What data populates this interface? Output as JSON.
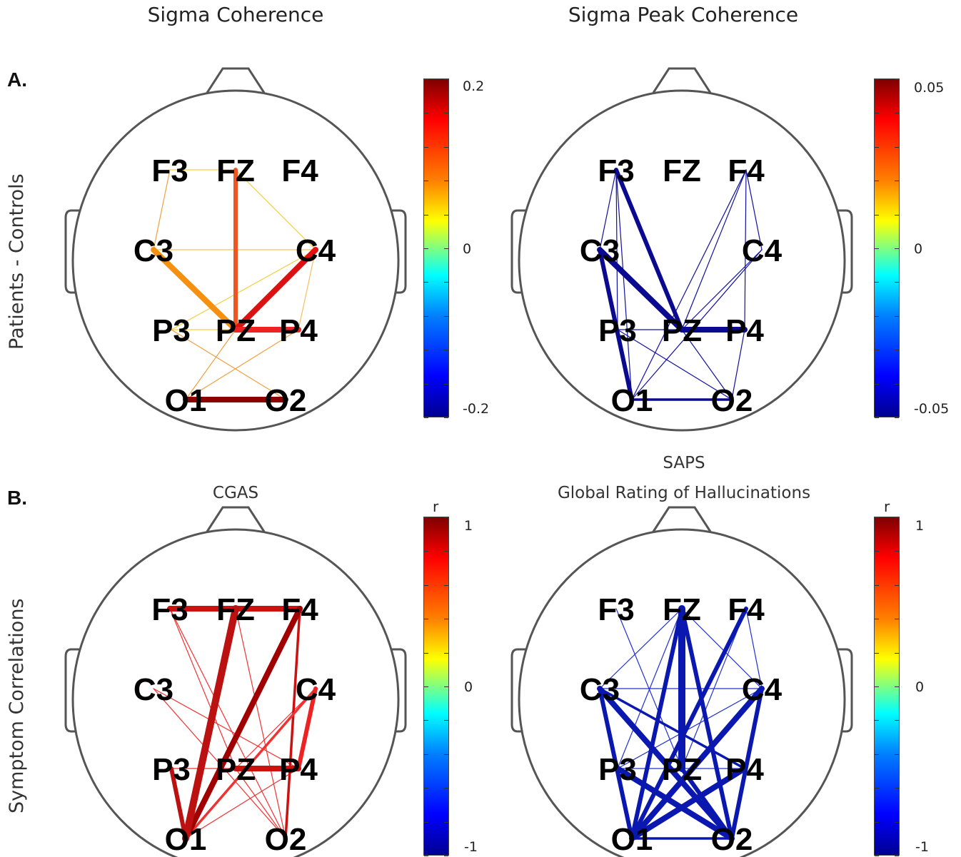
{
  "titles": {
    "left": "Sigma Coherence",
    "right": "Sigma Peak Coherence",
    "b_left": "CGAS",
    "b_right_line1": "SAPS",
    "b_right_line2": "Global Rating of Hallucinations"
  },
  "panels": {
    "a": "A.",
    "b": "B."
  },
  "row_labels": {
    "a": "Patients - Controls",
    "b": "Symptom Correlations"
  },
  "colorbars": {
    "a_left": {
      "top": "0.2",
      "mid": "0",
      "bottom": "-0.2",
      "unit": ""
    },
    "a_right": {
      "top": "0.05",
      "mid": "0",
      "bottom": "-0.05",
      "unit": ""
    },
    "b_left": {
      "top": "1",
      "mid": "0",
      "bottom": "-1",
      "unit": "r"
    },
    "b_right": {
      "top": "1",
      "mid": "0",
      "bottom": "-1",
      "unit": "r"
    }
  },
  "electrodes": [
    "F3",
    "FZ",
    "F4",
    "C3",
    "C4",
    "P3",
    "PZ",
    "P4",
    "O1",
    "O2"
  ],
  "chart_data": {
    "type": "network",
    "heads": [
      {
        "id": "a_left",
        "edges": [
          [
            "FZ",
            "PZ",
            "#ee5522",
            "thick"
          ],
          [
            "C3",
            "PZ",
            "#f59010",
            "heavy"
          ],
          [
            "C4",
            "PZ",
            "#dd1111",
            "heavy"
          ],
          [
            "PZ",
            "P4",
            "#ee2222",
            "heavy"
          ],
          [
            "O1",
            "O2",
            "#8b0000",
            "heavy"
          ],
          [
            "F3",
            "C3",
            "#f0a040",
            "thin"
          ],
          [
            "FZ",
            "C4",
            "#f5d040",
            "thin"
          ],
          [
            "FZ",
            "F3",
            "#f5d040",
            "thin"
          ],
          [
            "C3",
            "C4",
            "#f5c060",
            "thin"
          ],
          [
            "P3",
            "C4",
            "#f5d040",
            "thin"
          ],
          [
            "P3",
            "PZ",
            "#f5d040",
            "thin"
          ],
          [
            "P3",
            "O2",
            "#f0a040",
            "thin"
          ],
          [
            "P4",
            "O1",
            "#f0a040",
            "thin"
          ],
          [
            "PZ",
            "O1",
            "#f0a040",
            "thin"
          ],
          [
            "C4",
            "P4",
            "#f5c060",
            "thin"
          ]
        ]
      },
      {
        "id": "a_right",
        "edges": [
          [
            "C3",
            "PZ",
            "#0a0a90",
            "heavy"
          ],
          [
            "PZ",
            "P4",
            "#0a0a90",
            "heavy"
          ],
          [
            "F3",
            "PZ",
            "#0a0a90",
            "thick"
          ],
          [
            "C3",
            "O1",
            "#0a0a90",
            "thick"
          ],
          [
            "O1",
            "O2",
            "#0a0a90",
            "medium"
          ],
          [
            "F3",
            "C3",
            "#1010a0",
            "thin"
          ],
          [
            "F3",
            "P3",
            "#1010a0",
            "thin"
          ],
          [
            "F3",
            "O1",
            "#1010a0",
            "thin"
          ],
          [
            "F4",
            "PZ",
            "#1010a0",
            "thin"
          ],
          [
            "F4",
            "P4",
            "#1010a0",
            "thin"
          ],
          [
            "F4",
            "O1",
            "#1010a0",
            "thin"
          ],
          [
            "C4",
            "PZ",
            "#1010a0",
            "thin"
          ],
          [
            "C4",
            "O1",
            "#1010a0",
            "thin"
          ],
          [
            "P3",
            "P4",
            "#1010a0",
            "thin"
          ],
          [
            "PZ",
            "O2",
            "#1010a0",
            "thin"
          ],
          [
            "P4",
            "O2",
            "#1010a0",
            "thin"
          ],
          [
            "C3",
            "P3",
            "#1010a0",
            "thin"
          ],
          [
            "F4",
            "C4",
            "#1010a0",
            "thin"
          ],
          [
            "P3",
            "O2",
            "#1010a0",
            "thin"
          ]
        ]
      },
      {
        "id": "b_left",
        "edges": [
          [
            "F3",
            "F4",
            "#cc1111",
            "heavy"
          ],
          [
            "FZ",
            "O1",
            "#bb1111",
            "xheavy"
          ],
          [
            "F4",
            "O1",
            "#a00000",
            "heavy"
          ],
          [
            "PZ",
            "P4",
            "#cc1111",
            "heavy"
          ],
          [
            "C4",
            "P4",
            "#ee2222",
            "thick"
          ],
          [
            "F4",
            "O2",
            "#cc1111",
            "medium"
          ],
          [
            "P3",
            "O1",
            "#bb1111",
            "thick"
          ],
          [
            "O1",
            "C4",
            "#ee3333",
            "medium"
          ],
          [
            "F3",
            "O2",
            "#ee3333",
            "thin"
          ],
          [
            "C3",
            "P4",
            "#ee3333",
            "thin"
          ],
          [
            "C3",
            "O2",
            "#ee3333",
            "thin"
          ],
          [
            "FZ",
            "O2",
            "#ee3333",
            "thin"
          ],
          [
            "P3",
            "P4",
            "#ee3333",
            "thin"
          ],
          [
            "PZ",
            "O2",
            "#ee3333",
            "thin"
          ],
          [
            "O1",
            "P4",
            "#ee3333",
            "thin"
          ],
          [
            "F3",
            "PZ",
            "#ee3333",
            "thin"
          ],
          [
            "C4",
            "PZ",
            "#ee3333",
            "thin"
          ]
        ]
      },
      {
        "id": "b_right",
        "edges": [
          [
            "FZ",
            "PZ",
            "#0a18b0",
            "xheavy"
          ],
          [
            "FZ",
            "O1",
            "#0a18b0",
            "thick"
          ],
          [
            "FZ",
            "O2",
            "#0a18b0",
            "thick"
          ],
          [
            "F4",
            "O1",
            "#0a18b0",
            "thick"
          ],
          [
            "C3",
            "O2",
            "#0a18b0",
            "heavy"
          ],
          [
            "C3",
            "O1",
            "#0a18b0",
            "thick"
          ],
          [
            "C4",
            "O1",
            "#0a18b0",
            "heavy"
          ],
          [
            "C4",
            "O2",
            "#0a18b0",
            "thick"
          ],
          [
            "P3",
            "O2",
            "#0a18b0",
            "heavy"
          ],
          [
            "P4",
            "O1",
            "#0a18b0",
            "heavy"
          ],
          [
            "O1",
            "O2",
            "#0a18b0",
            "medium"
          ],
          [
            "PZ",
            "O2",
            "#0a18b0",
            "thick"
          ],
          [
            "C3",
            "P4",
            "#0a18b0",
            "medium"
          ],
          [
            "F3",
            "PZ",
            "#2030d0",
            "thin"
          ],
          [
            "FZ",
            "C4",
            "#2030d0",
            "thin"
          ],
          [
            "FZ",
            "P3",
            "#2030d0",
            "thin"
          ],
          [
            "F4",
            "C4",
            "#2030d0",
            "thin"
          ],
          [
            "C3",
            "C4",
            "#2030d0",
            "thin"
          ],
          [
            "C4",
            "P3",
            "#2030d0",
            "thin"
          ],
          [
            "FZ",
            "C3",
            "#2030d0",
            "thin"
          ],
          [
            "F4",
            "PZ",
            "#2030d0",
            "thin"
          ],
          [
            "P3",
            "P4",
            "#2030d0",
            "thin"
          ]
        ]
      }
    ],
    "widths": {
      "thin": 1.2,
      "medium": 3.5,
      "thick": 6,
      "heavy": 8,
      "xheavy": 10
    }
  }
}
